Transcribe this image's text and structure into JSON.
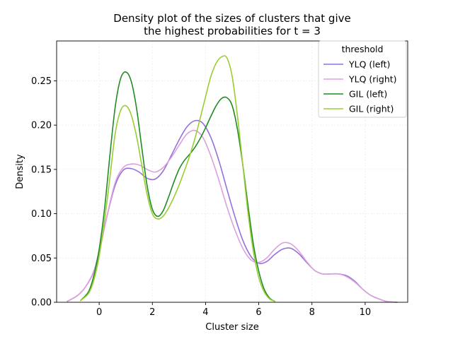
{
  "chart_data": {
    "type": "line",
    "title_lines": [
      "Density plot of the sizes of clusters that give",
      "the highest probabilities for t = 3"
    ],
    "xlabel": "Cluster size",
    "ylabel": "Density",
    "xlim": [
      -1.6,
      11.6
    ],
    "ylim": [
      0,
      0.295
    ],
    "xticks": [
      0,
      2,
      4,
      6,
      8,
      10
    ],
    "xtick_labels": [
      "0",
      "2",
      "4",
      "6",
      "8",
      "10"
    ],
    "yticks": [
      0,
      0.05,
      0.1,
      0.15,
      0.2,
      0.25
    ],
    "ytick_labels": [
      "0.00",
      "0.05",
      "0.10",
      "0.15",
      "0.20",
      "0.25"
    ],
    "grid": true,
    "legend": {
      "title": "threshold",
      "placement": "top-right"
    },
    "series": [
      {
        "name": "YLQ (left)",
        "color": "#9370db",
        "x": [
          -1.2,
          -0.8,
          -0.5,
          -0.2,
          0,
          0.3,
          0.6,
          0.9,
          1.2,
          1.5,
          1.8,
          2.1,
          2.4,
          2.7,
          3.0,
          3.3,
          3.6,
          3.9,
          4.2,
          4.5,
          4.8,
          5.1,
          5.4,
          5.7,
          6.0,
          6.3,
          6.6,
          6.9,
          7.2,
          7.5,
          7.8,
          8.1,
          8.4,
          8.7,
          9.0,
          9.3,
          9.6,
          9.9,
          10.2,
          10.5,
          10.8,
          11.2
        ],
        "y": [
          0.001,
          0.008,
          0.018,
          0.035,
          0.058,
          0.098,
          0.132,
          0.149,
          0.151,
          0.147,
          0.14,
          0.139,
          0.148,
          0.165,
          0.183,
          0.198,
          0.205,
          0.202,
          0.186,
          0.16,
          0.128,
          0.097,
          0.07,
          0.052,
          0.044,
          0.046,
          0.054,
          0.06,
          0.061,
          0.055,
          0.045,
          0.036,
          0.032,
          0.032,
          0.032,
          0.03,
          0.024,
          0.015,
          0.008,
          0.004,
          0.001,
          0.0
        ]
      },
      {
        "name": "YLQ (right)",
        "color": "#dda0dd",
        "x": [
          -1.2,
          -0.8,
          -0.5,
          -0.2,
          0,
          0.3,
          0.6,
          0.9,
          1.2,
          1.5,
          1.8,
          2.1,
          2.4,
          2.7,
          3.0,
          3.3,
          3.6,
          3.9,
          4.2,
          4.5,
          4.8,
          5.1,
          5.4,
          5.7,
          6.0,
          6.3,
          6.6,
          6.9,
          7.2,
          7.5,
          7.8,
          8.1,
          8.4,
          8.7,
          9.0,
          9.3,
          9.6,
          9.9,
          10.2,
          10.5,
          10.8,
          11.2
        ],
        "y": [
          0.001,
          0.008,
          0.018,
          0.034,
          0.056,
          0.098,
          0.135,
          0.152,
          0.156,
          0.155,
          0.15,
          0.147,
          0.152,
          0.163,
          0.177,
          0.19,
          0.194,
          0.186,
          0.165,
          0.138,
          0.108,
          0.082,
          0.061,
          0.048,
          0.045,
          0.05,
          0.06,
          0.067,
          0.066,
          0.058,
          0.046,
          0.036,
          0.032,
          0.032,
          0.032,
          0.029,
          0.023,
          0.015,
          0.008,
          0.004,
          0.001,
          0.0
        ]
      },
      {
        "name": "GIL (left)",
        "color": "#228b22",
        "x": [
          -0.7,
          -0.4,
          -0.2,
          0,
          0.2,
          0.4,
          0.6,
          0.8,
          1.0,
          1.2,
          1.4,
          1.6,
          1.8,
          2.0,
          2.2,
          2.4,
          2.6,
          2.8,
          3.0,
          3.2,
          3.4,
          3.6,
          3.8,
          4.0,
          4.2,
          4.4,
          4.6,
          4.8,
          5.0,
          5.2,
          5.4,
          5.6,
          5.8,
          6.0,
          6.2,
          6.4,
          6.6
        ],
        "y": [
          0.002,
          0.012,
          0.03,
          0.06,
          0.105,
          0.165,
          0.22,
          0.252,
          0.26,
          0.25,
          0.22,
          0.175,
          0.132,
          0.105,
          0.097,
          0.103,
          0.118,
          0.135,
          0.15,
          0.16,
          0.167,
          0.175,
          0.185,
          0.197,
          0.21,
          0.222,
          0.23,
          0.231,
          0.222,
          0.195,
          0.155,
          0.108,
          0.065,
          0.035,
          0.015,
          0.005,
          0.001
        ]
      },
      {
        "name": "GIL (right)",
        "color": "#9acd32",
        "x": [
          -0.7,
          -0.4,
          -0.2,
          0,
          0.2,
          0.4,
          0.6,
          0.8,
          1.0,
          1.2,
          1.4,
          1.6,
          1.8,
          2.0,
          2.2,
          2.4,
          2.6,
          2.8,
          3.0,
          3.2,
          3.4,
          3.6,
          3.8,
          4.0,
          4.2,
          4.4,
          4.6,
          4.8,
          5.0,
          5.2,
          5.4,
          5.6,
          5.8,
          6.0,
          6.2,
          6.4,
          6.6
        ],
        "y": [
          0.002,
          0.01,
          0.025,
          0.052,
          0.092,
          0.14,
          0.19,
          0.216,
          0.222,
          0.212,
          0.188,
          0.155,
          0.122,
          0.1,
          0.094,
          0.097,
          0.106,
          0.118,
          0.132,
          0.148,
          0.165,
          0.185,
          0.208,
          0.232,
          0.255,
          0.27,
          0.277,
          0.276,
          0.255,
          0.21,
          0.155,
          0.1,
          0.057,
          0.028,
          0.012,
          0.004,
          0.001
        ]
      }
    ]
  }
}
